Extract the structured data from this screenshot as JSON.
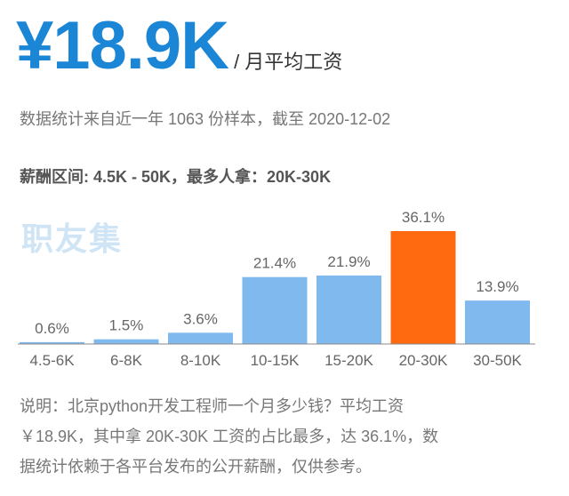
{
  "header": {
    "salary": "¥18.9K",
    "unit": "/ 月平均工资",
    "meta": "数据统计来自近一年 1063 份样本，截至 2020-12-02",
    "range": "薪酬区间: 4.5K - 50K，最多人拿：20K-30K"
  },
  "watermark": "职友集",
  "colors": {
    "bar": "#7fb9ee",
    "highlight": "#ff6a10",
    "baseline": "#888888",
    "label": "#666666"
  },
  "chart_data": {
    "type": "bar",
    "categories": [
      "4.5-6K",
      "6-8K",
      "8-10K",
      "10-15K",
      "15-20K",
      "20-30K",
      "30-50K"
    ],
    "values": [
      0.6,
      1.5,
      3.6,
      21.4,
      21.9,
      36.1,
      13.9
    ],
    "value_labels": [
      "0.6%",
      "1.5%",
      "3.6%",
      "21.4%",
      "21.9%",
      "36.1%",
      "13.9%"
    ],
    "highlight_index": 5,
    "ylim": [
      0,
      36.1
    ],
    "grid": false,
    "legend": "none"
  },
  "note": {
    "lines": [
      "说明：北京python开发工程师一个月多少钱？平均工资",
      "￥18.9K，其中拿 20K-30K 工资的占比最多，达 36.1%，数",
      "据统计依赖于各平台发布的公开薪酬，仅供参考。"
    ]
  }
}
